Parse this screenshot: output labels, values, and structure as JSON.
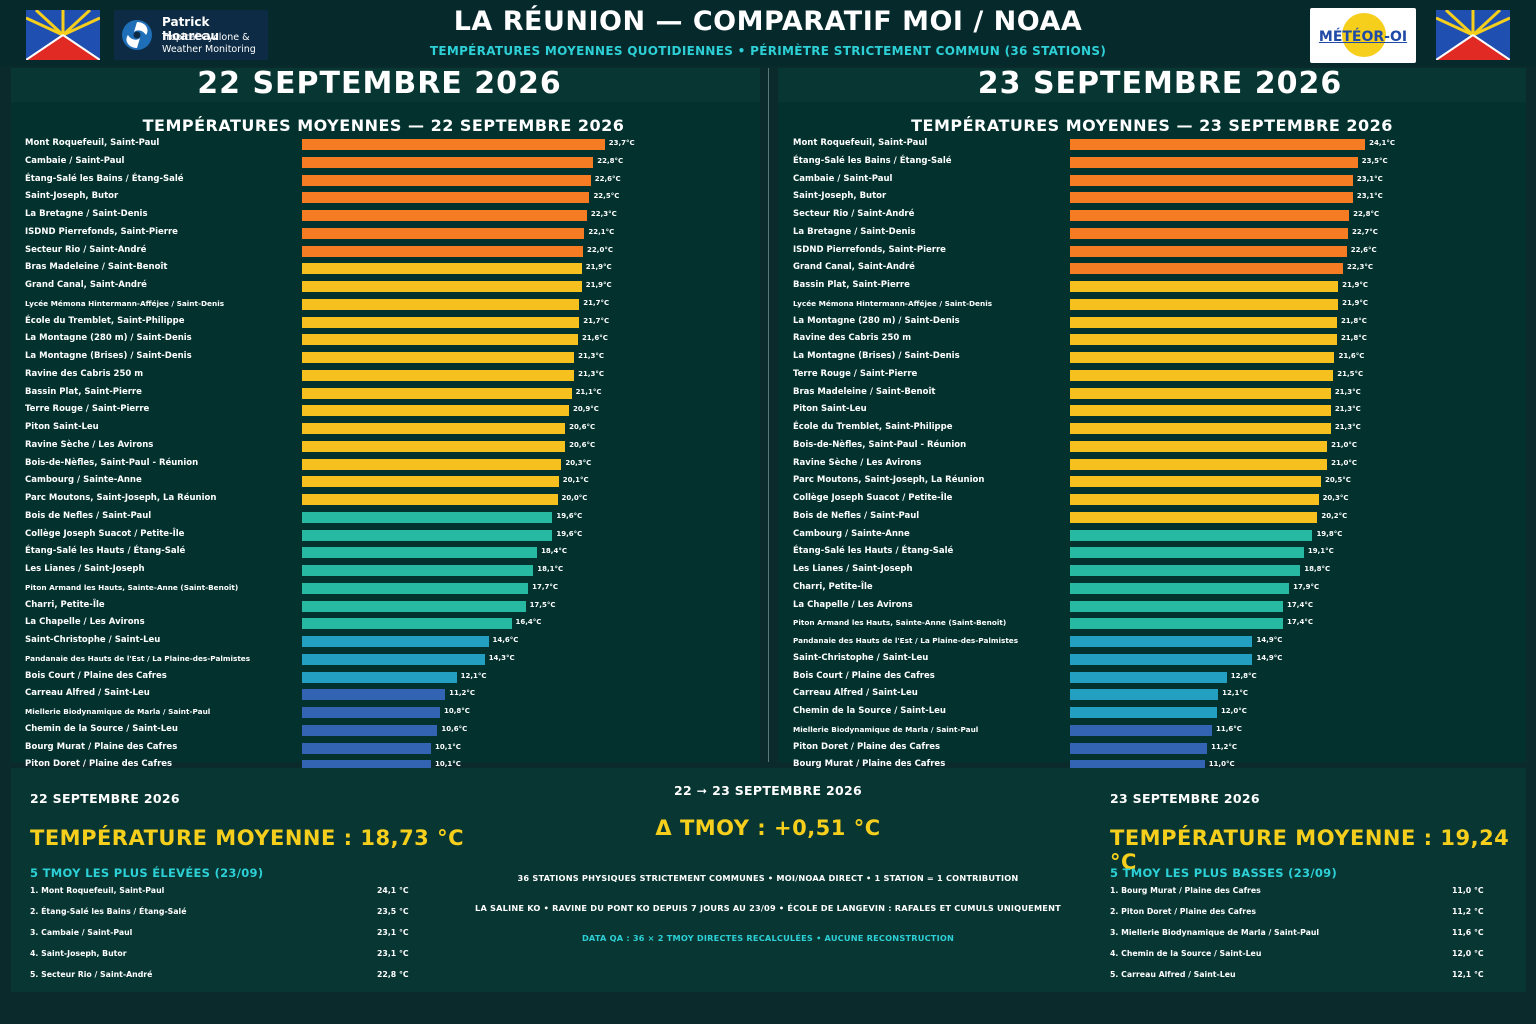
{
  "header": {
    "title": "LA RÉUNION — COMPARATIF MOI / NOAA",
    "subtitle": "TEMPÉRATURES MOYENNES QUOTIDIENNES • PÉRIMÈTRE STRICTEMENT COMMUN (36 STATIONS)",
    "logo_left_line1": "Patrick Hoareau",
    "logo_left_line2": "Tropical Cyclone &",
    "logo_left_line3": "Weather Monitoring",
    "logo_right": "MÉTÉOR-OI",
    "colors": {
      "accent_cyan": "#2dd0d6",
      "accent_yellow": "#f6cf1c",
      "background": "#0b2a2c",
      "panel": "#083633"
    }
  },
  "chart_data": [
    {
      "type": "bar",
      "orientation": "horizontal",
      "date_title": "22 SEPTEMBRE 2026",
      "title": "TEMPÉRATURES MOYENNES — 22 SEPTEMBRE 2026",
      "unit": "°C",
      "xlim": [
        0,
        24.5
      ],
      "grid": false,
      "color_bins": [
        {
          "min": 22.0,
          "color": "#f57c22"
        },
        {
          "min": 20.0,
          "color": "#f6c11f"
        },
        {
          "min": 15.0,
          "color": "#27b9a1"
        },
        {
          "min": 12.0,
          "color": "#229fc1"
        },
        {
          "min": 0,
          "color": "#3264b3"
        }
      ],
      "categories": [
        "Mont Roquefeuil, Saint-Paul",
        "Cambaie / Saint-Paul",
        "Étang-Salé les Bains / Étang-Salé",
        "Saint-Joseph, Butor",
        "La Bretagne / Saint-Denis",
        "ISDND Pierrefonds, Saint-Pierre",
        "Secteur Rio / Saint-André",
        "Bras Madeleine / Saint-Benoît",
        "Grand Canal, Saint-André",
        "Lycée Mémona Hintermann-Afféjee / Saint-Denis",
        "École du Tremblet, Saint-Philippe",
        "La Montagne (280 m) / Saint-Denis",
        "La Montagne (Brises) / Saint-Denis",
        "Ravine des Cabris 250 m",
        "Bassin Plat, Saint-Pierre",
        "Terre Rouge / Saint-Pierre",
        "Piton Saint-Leu",
        "Ravine Sèche / Les Avirons",
        "Bois-de-Nèfles, Saint-Paul - Réunion",
        "Cambourg / Sainte-Anne",
        "Parc Moutons, Saint-Joseph, La Réunion",
        "Bois de Nefles / Saint-Paul",
        "Collège Joseph Suacot / Petite-Île",
        "Étang-Salé les Hauts / Étang-Salé",
        "Les Lianes / Saint-Joseph",
        "Piton Armand les Hauts, Sainte-Anne (Saint-Benoît)",
        "Charri, Petite-Île",
        "La Chapelle / Les Avirons",
        "Saint-Christophe / Saint-Leu",
        "Pandanaie des Hauts de l'Est / La Plaine-des-Palmistes",
        "Bois Court / Plaine des Cafres",
        "Carreau Alfred / Saint-Leu",
        "Miellerie Biodynamique de Marla / Saint-Paul",
        "Chemin de la Source / Saint-Leu",
        "Bourg Murat / Plaine des Cafres",
        "Piton Doret / Plaine des Cafres"
      ],
      "values": [
        23.7,
        22.8,
        22.6,
        22.5,
        22.3,
        22.1,
        22.0,
        21.9,
        21.9,
        21.7,
        21.7,
        21.6,
        21.3,
        21.3,
        21.1,
        20.9,
        20.6,
        20.6,
        20.3,
        20.1,
        20.0,
        19.6,
        19.6,
        18.4,
        18.1,
        17.7,
        17.5,
        16.4,
        14.6,
        14.3,
        12.1,
        11.2,
        10.8,
        10.6,
        10.1,
        10.1
      ],
      "value_labels": [
        "23,7°C",
        "22,8°C",
        "22,6°C",
        "22,5°C",
        "22,3°C",
        "22,1°C",
        "22,0°C",
        "21,9°C",
        "21,9°C",
        "21,7°C",
        "21,7°C",
        "21,6°C",
        "21,3°C",
        "21,3°C",
        "21,1°C",
        "20,9°C",
        "20,6°C",
        "20,6°C",
        "20,3°C",
        "20,1°C",
        "20,0°C",
        "19,6°C",
        "19,6°C",
        "18,4°C",
        "18,1°C",
        "17,7°C",
        "17,5°C",
        "16,4°C",
        "14,6°C",
        "14,3°C",
        "12,1°C",
        "11,2°C",
        "10,8°C",
        "10,6°C",
        "10,1°C",
        "10,1°C"
      ]
    },
    {
      "type": "bar",
      "orientation": "horizontal",
      "date_title": "23 SEPTEMBRE 2026",
      "title": "TEMPÉRATURES MOYENNES — 23 SEPTEMBRE 2026",
      "unit": "°C",
      "xlim": [
        0,
        24.5
      ],
      "grid": false,
      "color_bins": [
        {
          "min": 22.0,
          "color": "#f57c22"
        },
        {
          "min": 20.0,
          "color": "#f6c11f"
        },
        {
          "min": 15.0,
          "color": "#27b9a1"
        },
        {
          "min": 12.0,
          "color": "#229fc1"
        },
        {
          "min": 0,
          "color": "#3264b3"
        }
      ],
      "categories": [
        "Mont Roquefeuil, Saint-Paul",
        "Étang-Salé les Bains / Étang-Salé",
        "Cambaie / Saint-Paul",
        "Saint-Joseph, Butor",
        "Secteur Rio / Saint-André",
        "La Bretagne / Saint-Denis",
        "ISDND Pierrefonds, Saint-Pierre",
        "Grand Canal, Saint-André",
        "Bassin Plat, Saint-Pierre",
        "Lycée Mémona Hintermann-Afféjee / Saint-Denis",
        "La Montagne (280 m) / Saint-Denis",
        "Ravine des Cabris 250 m",
        "La Montagne (Brises) / Saint-Denis",
        "Terre Rouge / Saint-Pierre",
        "Bras Madeleine / Saint-Benoît",
        "Piton Saint-Leu",
        "École du Tremblet, Saint-Philippe",
        "Bois-de-Nèfles, Saint-Paul - Réunion",
        "Ravine Sèche / Les Avirons",
        "Parc Moutons, Saint-Joseph, La Réunion",
        "Collège Joseph Suacot / Petite-Île",
        "Bois de Nefles / Saint-Paul",
        "Cambourg / Sainte-Anne",
        "Étang-Salé les Hauts / Étang-Salé",
        "Les Lianes / Saint-Joseph",
        "Charri, Petite-Île",
        "La Chapelle / Les Avirons",
        "Piton Armand les Hauts, Sainte-Anne (Saint-Benoît)",
        "Pandanaie des Hauts de l'Est / La Plaine-des-Palmistes",
        "Saint-Christophe / Saint-Leu",
        "Bois Court / Plaine des Cafres",
        "Carreau Alfred / Saint-Leu",
        "Chemin de la Source / Saint-Leu",
        "Miellerie Biodynamique de Marla / Saint-Paul",
        "Piton Doret / Plaine des Cafres",
        "Bourg Murat / Plaine des Cafres"
      ],
      "values": [
        24.1,
        23.5,
        23.1,
        23.1,
        22.8,
        22.7,
        22.6,
        22.3,
        21.9,
        21.9,
        21.8,
        21.8,
        21.6,
        21.5,
        21.3,
        21.3,
        21.3,
        21.0,
        21.0,
        20.5,
        20.3,
        20.2,
        19.8,
        19.1,
        18.8,
        17.9,
        17.4,
        17.4,
        14.9,
        14.9,
        12.8,
        12.1,
        12.0,
        11.6,
        11.2,
        11.0
      ],
      "value_labels": [
        "24,1°C",
        "23,5°C",
        "23,1°C",
        "23,1°C",
        "22,8°C",
        "22,7°C",
        "22,6°C",
        "22,3°C",
        "21,9°C",
        "21,9°C",
        "21,8°C",
        "21,8°C",
        "21,6°C",
        "21,5°C",
        "21,3°C",
        "21,3°C",
        "21,3°C",
        "21,0°C",
        "21,0°C",
        "20,5°C",
        "20,3°C",
        "20,2°C",
        "19,8°C",
        "19,1°C",
        "18,8°C",
        "17,9°C",
        "17,4°C",
        "17,4°C",
        "14,9°C",
        "14,9°C",
        "12,8°C",
        "12,1°C",
        "12,0°C",
        "11,6°C",
        "11,2°C",
        "11,0°C"
      ]
    }
  ],
  "summary": {
    "left": {
      "date": "22 SEPTEMBRE 2026",
      "mean": "TEMPÉRATURE MOYENNE : 18,73 °C",
      "list_title": "5 TMOY LES PLUS ÉLEVÉES (23/09)",
      "items": [
        {
          "name": "1. Mont Roquefeuil, Saint-Paul",
          "value": "24,1 °C"
        },
        {
          "name": "2. Étang-Salé les Bains / Étang-Salé",
          "value": "23,5 °C"
        },
        {
          "name": "3. Cambaie / Saint-Paul",
          "value": "23,1 °C"
        },
        {
          "name": "4. Saint-Joseph, Butor",
          "value": "23,1 °C"
        },
        {
          "name": "5. Secteur Rio / Saint-André",
          "value": "22,8 °C"
        }
      ]
    },
    "center": {
      "date": "22 ➞ 23 SEPTEMBRE 2026",
      "delta": "Δ TMOY : +0,51 °C",
      "note1": "36 STATIONS PHYSIQUES STRICTEMENT COMMUNES • MOI/NOAA DIRECT • 1 STATION = 1 CONTRIBUTION",
      "note2": "LA SALINE KO • RAVINE DU PONT KO DEPUIS 7 JOURS AU 23/09 • ÉCOLE DE LANGEVIN : RAFALES ET CUMULS UNIQUEMENT",
      "note3": "DATA QA : 36 × 2 TMOY DIRECTES RECALCULÉES • AUCUNE RECONSTRUCTION"
    },
    "right": {
      "date": "23 SEPTEMBRE 2026",
      "mean": "TEMPÉRATURE MOYENNE : 19,24 °C",
      "list_title": "5 TMOY LES PLUS BASSES (23/09)",
      "items": [
        {
          "name": "1. Bourg Murat / Plaine des Cafres",
          "value": "11,0 °C"
        },
        {
          "name": "2. Piton Doret / Plaine des Cafres",
          "value": "11,2 °C"
        },
        {
          "name": "3. Miellerie Biodynamique de Marla / Saint-Paul",
          "value": "11,6 °C"
        },
        {
          "name": "4. Chemin de la Source / Saint-Leu",
          "value": "12,0 °C"
        },
        {
          "name": "5. Carreau Alfred / Saint-Leu",
          "value": "12,1 °C"
        }
      ]
    }
  }
}
